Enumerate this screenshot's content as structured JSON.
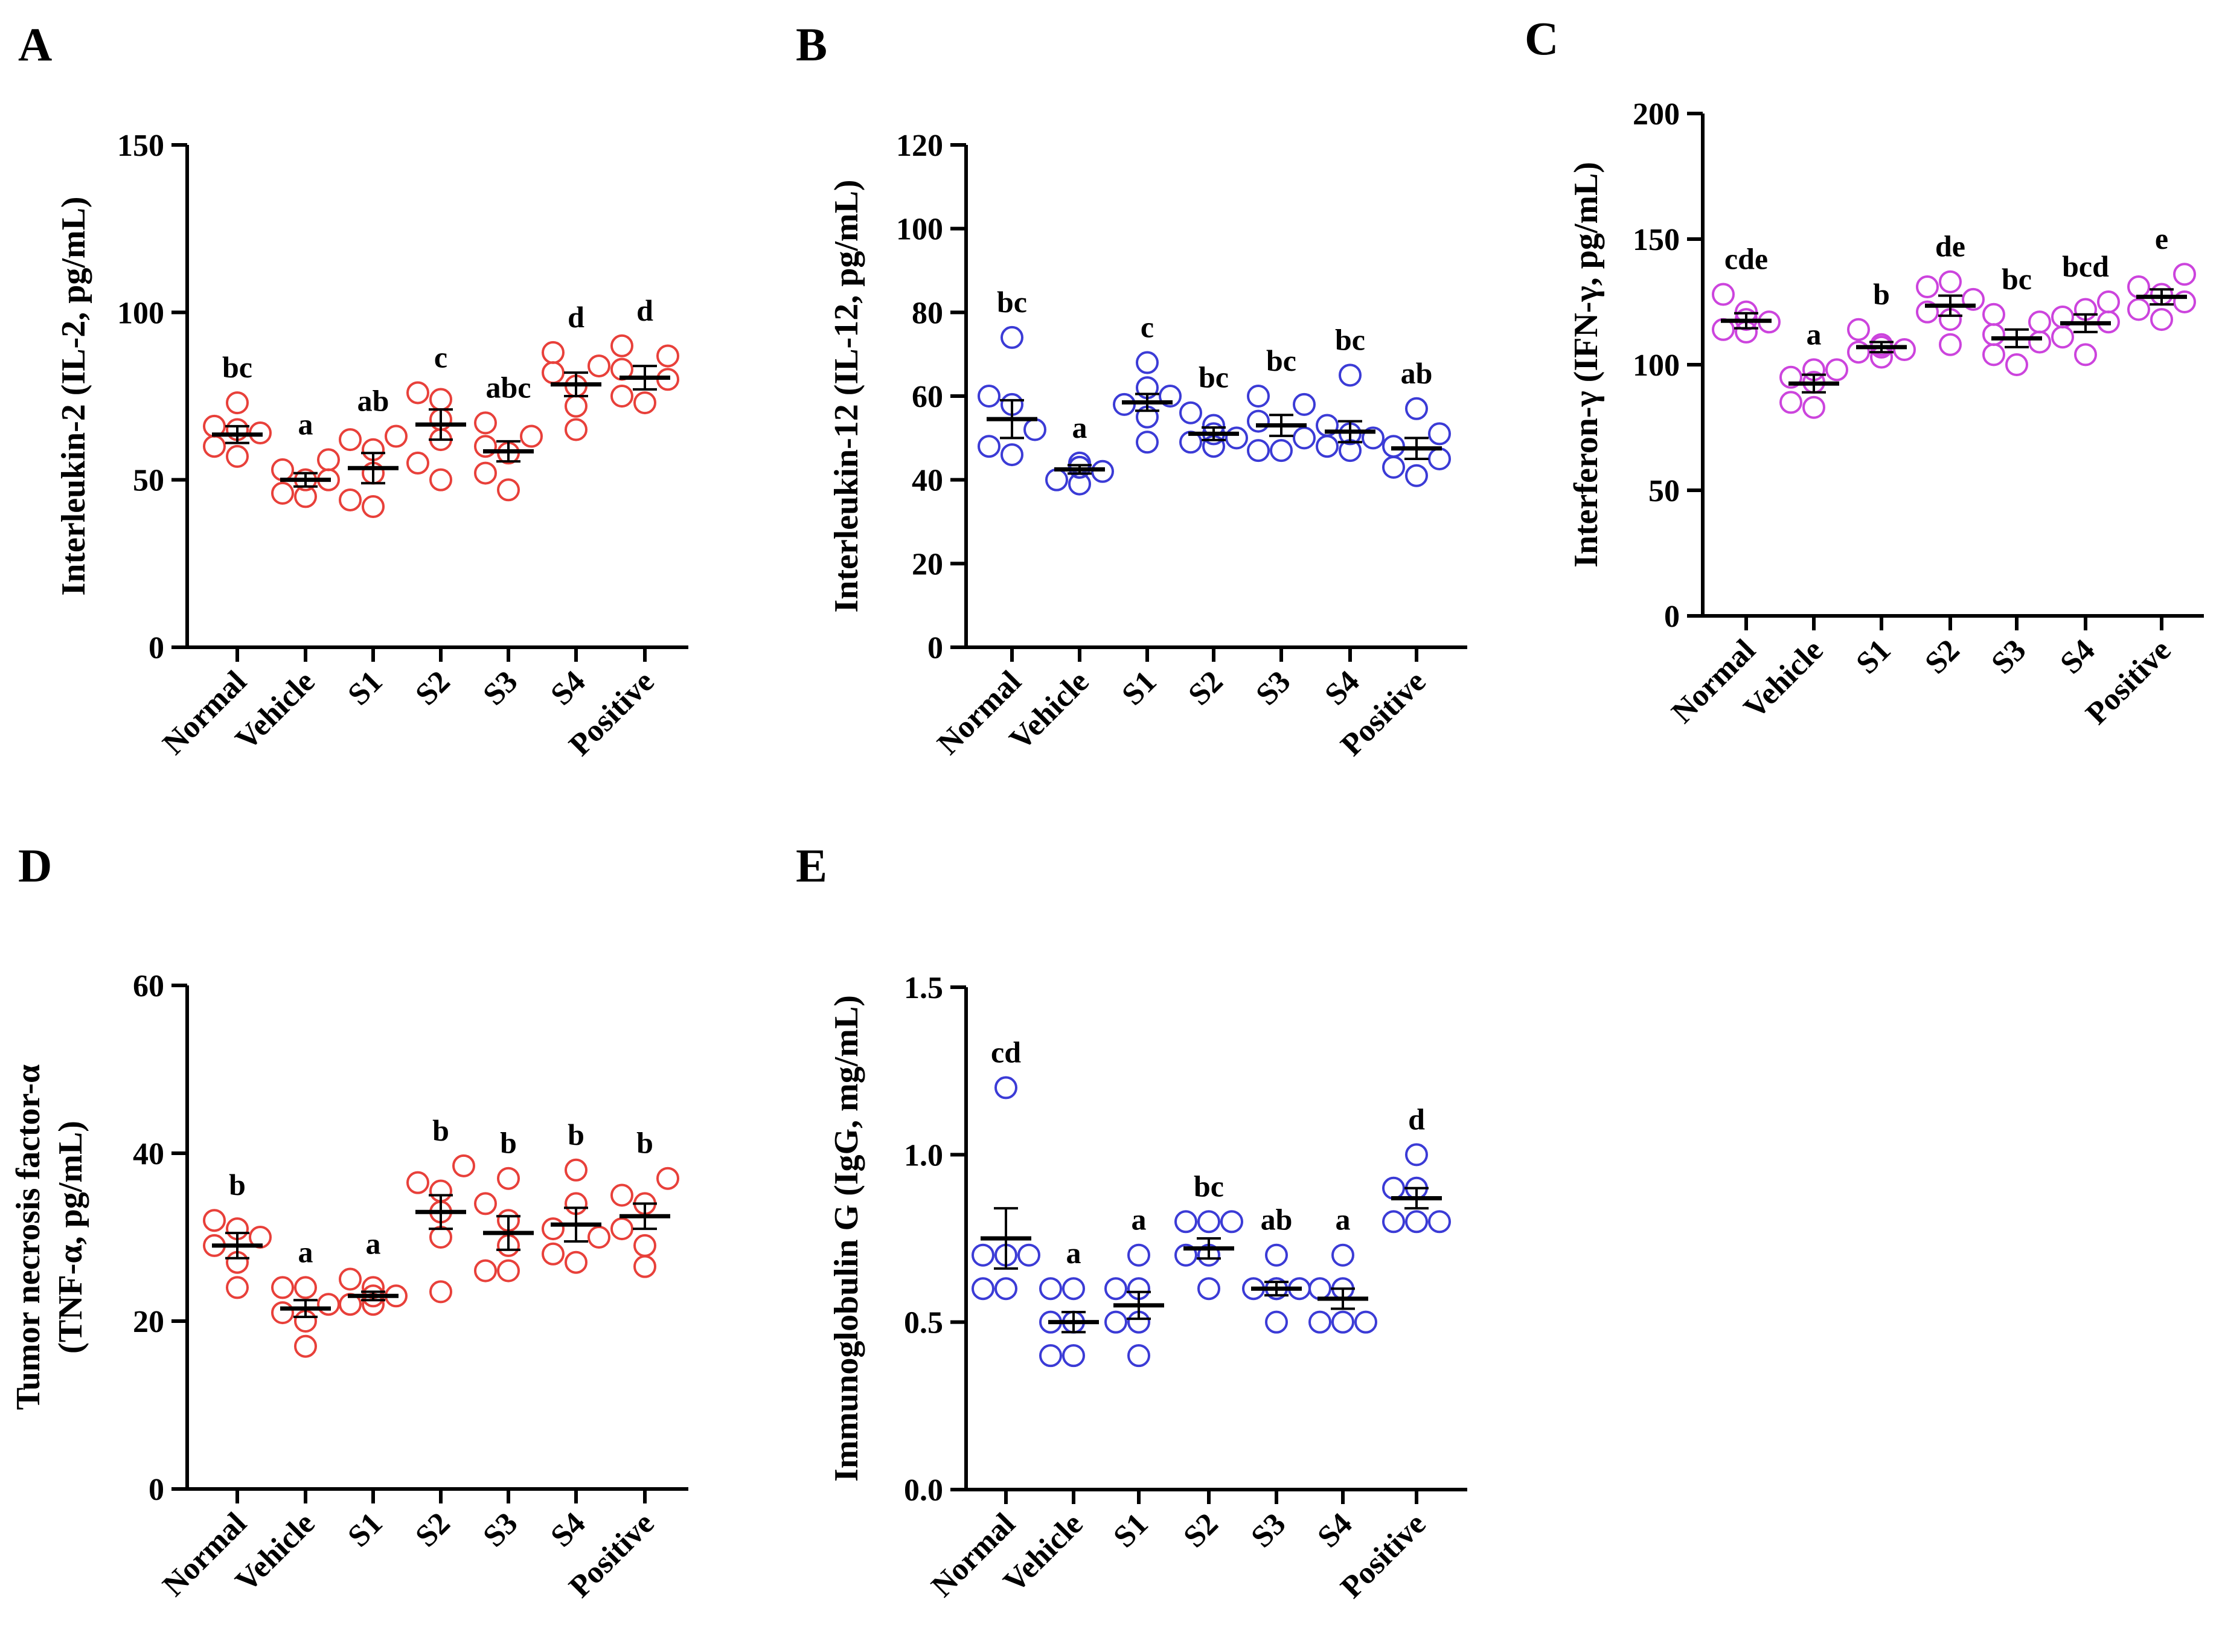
{
  "figure": {
    "panels": [
      "A",
      "B",
      "C",
      "D",
      "E"
    ]
  },
  "chart_data": [
    {
      "panel": "A",
      "type": "scatter",
      "ylabel": "Interleukin-2 (IL-2, pg/mL)",
      "ylim": [
        0,
        150
      ],
      "yticks": [
        0,
        50,
        100,
        150
      ],
      "color": "#e8403a",
      "categories": [
        "Normal",
        "Vehicle",
        "S1",
        "S2",
        "S3",
        "S4",
        "Positive"
      ],
      "means": [
        63.5,
        50,
        53.5,
        66.5,
        58.5,
        78.5,
        80.5
      ],
      "sem": [
        2.5,
        2,
        4.5,
        4.5,
        3,
        3.5,
        3.5
      ],
      "points": [
        [
          57,
          60,
          64,
          65,
          66,
          73
        ],
        [
          45,
          46,
          50,
          50,
          53,
          56
        ],
        [
          42,
          44,
          52,
          59,
          62,
          63
        ],
        [
          50,
          55,
          62,
          68,
          74,
          76
        ],
        [
          47,
          52,
          58,
          60,
          63,
          67
        ],
        [
          65,
          72,
          78,
          82,
          84,
          88
        ],
        [
          73,
          75,
          80,
          83,
          87,
          90
        ]
      ],
      "letters": [
        "bc",
        "a",
        "ab",
        "c",
        "abc",
        "d",
        "d"
      ]
    },
    {
      "panel": "B",
      "type": "scatter",
      "ylabel": "Interleukin-12 (IL-12, pg/mL)",
      "ylim": [
        0,
        120
      ],
      "yticks": [
        0,
        20,
        40,
        60,
        80,
        100,
        120
      ],
      "color": "#3b3bd6",
      "categories": [
        "Normal",
        "Vehicle",
        "S1",
        "S2",
        "S3",
        "S4",
        "Positive"
      ],
      "means": [
        54.5,
        42.5,
        58.5,
        51,
        53,
        51.5,
        47.5
      ],
      "sem": [
        4.5,
        1,
        2,
        1.5,
        2.5,
        2.5,
        2.5
      ],
      "points": [
        [
          46,
          48,
          52,
          58,
          60,
          74
        ],
        [
          39,
          40,
          42,
          43,
          43,
          44
        ],
        [
          49,
          55,
          58,
          60,
          62,
          68
        ],
        [
          48,
          49,
          50,
          51,
          53,
          56
        ],
        [
          47,
          47,
          50,
          54,
          58,
          60
        ],
        [
          47,
          48,
          50,
          51,
          53,
          65
        ],
        [
          41,
          43,
          45,
          48,
          51,
          57
        ]
      ],
      "letters": [
        "bc",
        "a",
        "c",
        "bc",
        "bc",
        "bc",
        "ab"
      ]
    },
    {
      "panel": "C",
      "type": "scatter",
      "ylabel": "Interferon-γ (IFN-γ, pg/mL)",
      "ylim": [
        0,
        200
      ],
      "yticks": [
        0,
        50,
        100,
        150,
        200
      ],
      "color": "#cc44dd",
      "categories": [
        "Normal",
        "Vehicle",
        "S1",
        "S2",
        "S3",
        "S4",
        "Positive"
      ],
      "means": [
        117.5,
        92.5,
        107,
        123.5,
        110.5,
        116.5,
        127
      ],
      "sem": [
        3,
        3.5,
        2,
        4,
        3.5,
        3.5,
        3
      ],
      "points": [
        [
          113,
          114,
          117,
          118,
          121,
          128
        ],
        [
          83,
          85,
          93,
          95,
          98,
          98
        ],
        [
          103,
          105,
          106,
          107,
          108,
          114
        ],
        [
          108,
          118,
          121,
          126,
          131,
          133
        ],
        [
          100,
          104,
          109,
          112,
          117,
          120
        ],
        [
          104,
          111,
          117,
          119,
          122,
          125
        ],
        [
          118,
          122,
          125,
          128,
          131,
          136
        ]
      ],
      "letters": [
        "cde",
        "a",
        "b",
        "de",
        "bc",
        "bcd",
        "e"
      ]
    },
    {
      "panel": "D",
      "type": "scatter",
      "ylabel": "Tumor necrosis factor-α (TNF-α, pg/mL)",
      "ylabel_lines": [
        "Tumor necrosis factor-α",
        "(TNF-α, pg/mL)"
      ],
      "ylim": [
        0,
        60
      ],
      "yticks": [
        0,
        20,
        40,
        60
      ],
      "color": "#e8403a",
      "categories": [
        "Normal",
        "Vehicle",
        "S1",
        "S2",
        "S3",
        "S4",
        "Positive"
      ],
      "means": [
        29,
        21.5,
        23,
        33,
        30.5,
        31.5,
        32.5
      ],
      "sem": [
        1.5,
        1,
        0.5,
        2,
        2,
        2,
        1.5
      ],
      "points": [
        [
          24,
          27,
          29,
          30,
          31,
          32
        ],
        [
          17,
          20,
          21,
          22,
          24,
          24
        ],
        [
          22,
          22,
          23,
          23,
          24,
          25
        ],
        [
          23.5,
          30,
          33,
          35.5,
          36.5,
          38.5
        ],
        [
          26,
          26,
          29,
          32,
          34,
          37
        ],
        [
          27,
          28,
          30,
          31,
          34,
          38
        ],
        [
          26.5,
          29,
          31,
          34,
          35,
          37
        ]
      ],
      "letters": [
        "b",
        "a",
        "a",
        "b",
        "b",
        "b",
        "b"
      ]
    },
    {
      "panel": "E",
      "type": "scatter",
      "ylabel": "Immunoglobulin G (IgG, mg/mL)",
      "ylim": [
        0,
        1.5
      ],
      "yticks": [
        0.0,
        0.5,
        1.0,
        1.5
      ],
      "ytick_labels": [
        "0.0",
        "0.5",
        "1.0",
        "1.5"
      ],
      "color": "#3b3bd6",
      "categories": [
        "Normal",
        "Vehicle",
        "S1",
        "S2",
        "S3",
        "S4",
        "Positive"
      ],
      "means": [
        0.75,
        0.5,
        0.55,
        0.72,
        0.6,
        0.57,
        0.87
      ],
      "sem": [
        0.09,
        0.03,
        0.04,
        0.03,
        0.02,
        0.03,
        0.03
      ],
      "points": [
        [
          0.6,
          0.6,
          0.7,
          0.7,
          0.7,
          1.2
        ],
        [
          0.4,
          0.4,
          0.5,
          0.5,
          0.6,
          0.6
        ],
        [
          0.4,
          0.5,
          0.5,
          0.6,
          0.6,
          0.7
        ],
        [
          0.6,
          0.7,
          0.7,
          0.8,
          0.8,
          0.8
        ],
        [
          0.5,
          0.6,
          0.6,
          0.6,
          0.6,
          0.7
        ],
        [
          0.5,
          0.5,
          0.5,
          0.6,
          0.6,
          0.7
        ],
        [
          0.8,
          0.8,
          0.8,
          0.9,
          0.9,
          1.0
        ]
      ],
      "letters": [
        "cd",
        "a",
        "a",
        "bc",
        "ab",
        "a",
        "d"
      ]
    }
  ]
}
